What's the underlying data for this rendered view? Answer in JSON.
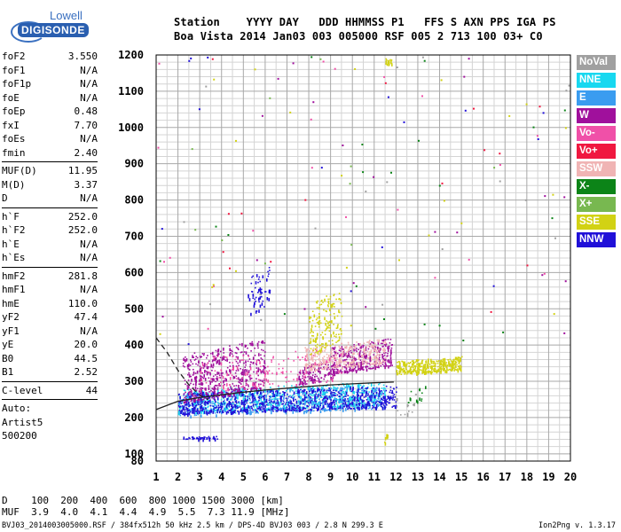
{
  "logo": {
    "line1": "Lowell",
    "line2": "DIGISONDE"
  },
  "header": {
    "line1": "Station    YYYY DAY   DDD HHMMSS P1   FFS S AXN PPS IGA PS",
    "line2": "Boa Vista 2014 Jan03 003 005000 RSF 005 2 713 100 03+ C0"
  },
  "params": {
    "g1": [
      {
        "name": "foF2",
        "value": "3.550"
      },
      {
        "name": "foF1",
        "value": "N/A"
      },
      {
        "name": "foF1p",
        "value": "N/A"
      },
      {
        "name": "foE",
        "value": "N/A"
      },
      {
        "name": "foEp",
        "value": "0.48"
      },
      {
        "name": "fxI",
        "value": "7.70"
      },
      {
        "name": "foEs",
        "value": "N/A"
      },
      {
        "name": "fmin",
        "value": "2.40"
      }
    ],
    "g2": [
      {
        "name": "MUF(D)",
        "value": "11.95"
      },
      {
        "name": "M(D)",
        "value": "3.37"
      },
      {
        "name": "D",
        "value": "N/A"
      }
    ],
    "g3": [
      {
        "name": "h`F",
        "value": "252.0"
      },
      {
        "name": "h`F2",
        "value": "252.0"
      },
      {
        "name": "h`E",
        "value": "N/A"
      },
      {
        "name": "h`Es",
        "value": "N/A"
      }
    ],
    "g4": [
      {
        "name": "hmF2",
        "value": "281.8"
      },
      {
        "name": "hmF1",
        "value": "N/A"
      },
      {
        "name": "hmE",
        "value": "110.0"
      },
      {
        "name": "yF2",
        "value": "47.4"
      },
      {
        "name": "yF1",
        "value": "N/A"
      },
      {
        "name": "yE",
        "value": "20.0"
      },
      {
        "name": "B0",
        "value": "44.5"
      },
      {
        "name": "B1",
        "value": "2.52"
      }
    ],
    "g5": [
      {
        "name": "C-level",
        "value": "44"
      }
    ],
    "auto": [
      "Auto:",
      "Artist5",
      "500200"
    ]
  },
  "legend": [
    {
      "label": "NoVal",
      "color": "#a0a0a0"
    },
    {
      "label": "NNE",
      "color": "#18d8f0"
    },
    {
      "label": "E",
      "color": "#3a9cf0"
    },
    {
      "label": "W",
      "color": "#a0109c"
    },
    {
      "label": "Vo-",
      "color": "#f050a8"
    },
    {
      "label": "Vo+",
      "color": "#f01840"
    },
    {
      "label": "SSW",
      "color": "#f0b4b4"
    },
    {
      "label": "X-",
      "color": "#0c8418"
    },
    {
      "label": "X+",
      "color": "#78b850"
    },
    {
      "label": "SSE",
      "color": "#d2d214"
    },
    {
      "label": "NNW",
      "color": "#2010d8"
    }
  ],
  "chart_data": {
    "type": "scatter",
    "title": "",
    "xlabel": "",
    "ylabel": "",
    "xlim": [
      1,
      20
    ],
    "ylim": [
      80,
      1200
    ],
    "x_ticks": [
      1,
      2,
      3,
      4,
      5,
      6,
      7,
      8,
      9,
      10,
      11,
      12,
      13,
      14,
      15,
      16,
      17,
      18,
      19,
      20
    ],
    "y_ticks": [
      80,
      100,
      200,
      300,
      400,
      500,
      600,
      700,
      800,
      900,
      1000,
      1100,
      1200
    ],
    "grid": true,
    "clusters": [
      {
        "series": "NNE",
        "x": [
          2.0,
          11.5
        ],
        "y": [
          215,
          300
        ],
        "count": 700
      },
      {
        "series": "E",
        "x": [
          2.0,
          11.5
        ],
        "y": [
          205,
          290
        ],
        "count": 500
      },
      {
        "series": "NNW",
        "x": [
          2.0,
          12.0
        ],
        "y": [
          210,
          290
        ],
        "count": 800
      },
      {
        "series": "W",
        "x": [
          2.2,
          6.0
        ],
        "y": [
          240,
          420
        ],
        "count": 500
      },
      {
        "series": "W",
        "x": [
          9.0,
          11.8
        ],
        "y": [
          320,
          420
        ],
        "count": 300
      },
      {
        "series": "W",
        "x": [
          7.5,
          9.2
        ],
        "y": [
          290,
          360
        ],
        "count": 120
      },
      {
        "series": "SSW",
        "x": [
          7.8,
          11.5
        ],
        "y": [
          330,
          420
        ],
        "count": 300
      },
      {
        "series": "Vo-",
        "x": [
          3.0,
          9.5
        ],
        "y": [
          270,
          400
        ],
        "count": 150
      },
      {
        "series": "SSE",
        "x": [
          8.0,
          9.5
        ],
        "y": [
          370,
          560
        ],
        "count": 160
      },
      {
        "series": "SSE",
        "x": [
          12.0,
          15.0
        ],
        "y": [
          320,
          370
        ],
        "count": 350
      },
      {
        "series": "SSE",
        "x": [
          11.5,
          11.8
        ],
        "y": [
          1170,
          1200
        ],
        "count": 20
      },
      {
        "series": "SSE",
        "x": [
          11.45,
          11.65
        ],
        "y": [
          130,
          160
        ],
        "count": 10
      },
      {
        "series": "NNW",
        "x": [
          5.2,
          6.2
        ],
        "y": [
          480,
          620
        ],
        "count": 60
      },
      {
        "series": "NNW",
        "x": [
          2.2,
          3.8
        ],
        "y": [
          140,
          150
        ],
        "count": 50
      },
      {
        "series": "X-",
        "x": [
          12.5,
          13.5
        ],
        "y": [
          240,
          290
        ],
        "count": 15
      },
      {
        "series": "NoVal",
        "x": [
          12.0,
          13.0
        ],
        "y": [
          200,
          280
        ],
        "count": 15
      }
    ],
    "curves": [
      {
        "name": "solid",
        "style": "solid",
        "x": [
          1,
          2,
          3,
          4,
          5,
          6,
          7,
          8,
          9,
          10,
          11,
          11.9
        ],
        "y": [
          222,
          245,
          255,
          263,
          270,
          276,
          281,
          286,
          290,
          293,
          296,
          298
        ]
      },
      {
        "name": "dashed",
        "style": "dashed",
        "x": [
          1,
          1.5,
          2,
          2.5,
          3,
          3.4
        ],
        "y": [
          420,
          380,
          330,
          290,
          262,
          250
        ]
      }
    ]
  },
  "muf_table": {
    "line1": "D    100  200  400  600  800 1000 1500 3000 [km]",
    "line2": "MUF  3.9  4.0  4.1  4.4  4.9  5.5  7.3 11.9 [MHz]"
  },
  "footer": {
    "left": "BVJ03_2014003005000.RSF / 384fx512h 50 kHz 2.5 km / DPS-4D BVJ03 003 / 2.8 N 299.3 E",
    "right": "Ion2Png v. 1.3.17"
  }
}
